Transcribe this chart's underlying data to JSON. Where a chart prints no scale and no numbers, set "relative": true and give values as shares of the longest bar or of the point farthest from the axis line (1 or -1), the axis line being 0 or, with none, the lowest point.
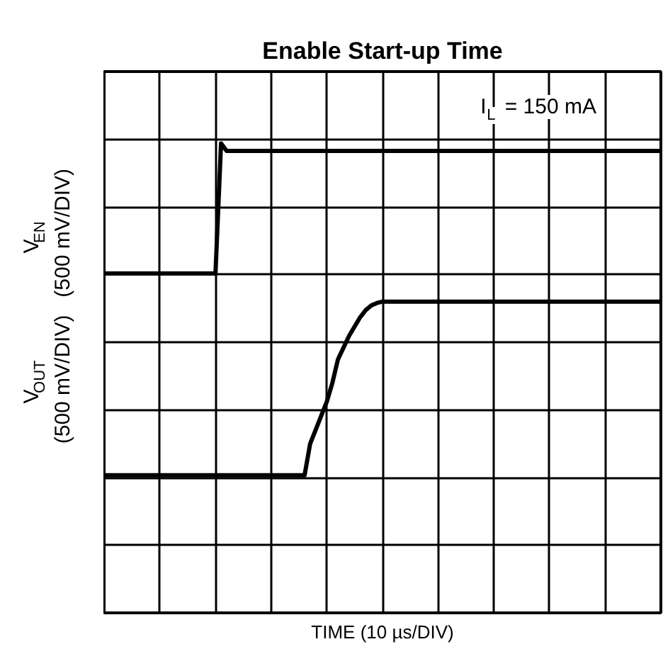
{
  "chart_data": {
    "type": "line",
    "title": "Enable Start-up Time",
    "xlabel": "TIME (10 µs/DIV)",
    "relative": true,
    "grid": true,
    "marker": "none",
    "line_style": "solid",
    "annotations": [
      "I$_{L}$ = 150 mA"
    ],
    "categories": [
      null,
      null,
      null,
      null,
      null,
      null,
      null,
      null,
      null,
      null,
      null,
      null,
      null,
      null,
      null,
      null,
      null,
      null,
      null,
      null,
      null,
      null,
      null,
      null,
      null,
      null,
      null,
      null,
      null,
      null,
      null,
      null,
      null,
      null,
      null,
      null,
      null,
      null,
      null,
      null,
      null,
      null,
      null,
      null,
      null,
      null,
      null,
      null,
      null,
      null,
      null,
      null,
      null,
      null,
      null,
      null,
      null,
      null,
      null,
      null,
      null,
      null,
      null,
      null,
      null,
      null,
      null,
      null,
      null,
      null,
      null,
      null,
      null,
      null,
      null,
      null,
      null,
      null,
      null,
      null,
      null,
      null,
      null,
      null,
      null,
      null,
      null,
      null,
      null,
      null,
      null,
      null,
      null,
      null,
      null,
      null,
      null,
      null,
      null,
      null,
      null
    ],
    "series": [
      {
        "name": "V$_{EN}$\n(500 mV/DIV)",
        "color": "#000000",
        "values": [
          0.723,
          0.723,
          0.723,
          0.723,
          0.723,
          0.723,
          0.723,
          0.723,
          0.723,
          0.723,
          0.723,
          0.723,
          0.723,
          0.723,
          0.723,
          0.723,
          0.723,
          0.723,
          0.723,
          0.723,
          0.723,
          1.0,
          0.984,
          0.984,
          0.984,
          0.984,
          0.984,
          0.984,
          0.984,
          0.984,
          0.984,
          0.984,
          0.984,
          0.984,
          0.984,
          0.984,
          0.984,
          0.984,
          0.984,
          0.984,
          0.984,
          0.984,
          0.984,
          0.984,
          0.984,
          0.984,
          0.984,
          0.984,
          0.984,
          0.984,
          0.984,
          0.984,
          0.984,
          0.984,
          0.984,
          0.984,
          0.984,
          0.984,
          0.984,
          0.984,
          0.984,
          0.984,
          0.984,
          0.984,
          0.984,
          0.984,
          0.984,
          0.984,
          0.984,
          0.984,
          0.984,
          0.984,
          0.984,
          0.984,
          0.984,
          0.984,
          0.984,
          0.984,
          0.984,
          0.984,
          0.984,
          0.984,
          0.984,
          0.984,
          0.984,
          0.984,
          0.984,
          0.984,
          0.984,
          0.984,
          0.984,
          0.984,
          0.984,
          0.984,
          0.984,
          0.984,
          0.984,
          0.984,
          0.984,
          0.984,
          0.984
        ]
      },
      {
        "name": "V$_{OUT}$\n(500 mV/DIV)",
        "color": "#000000",
        "values": [
          0.293,
          0.293,
          0.293,
          0.293,
          0.293,
          0.293,
          0.293,
          0.293,
          0.293,
          0.293,
          0.293,
          0.293,
          0.293,
          0.293,
          0.293,
          0.293,
          0.293,
          0.293,
          0.293,
          0.293,
          0.293,
          0.293,
          0.293,
          0.293,
          0.293,
          0.293,
          0.293,
          0.293,
          0.293,
          0.293,
          0.293,
          0.293,
          0.293,
          0.293,
          0.293,
          0.293,
          0.293,
          0.36,
          0.39,
          0.42,
          0.45,
          0.49,
          0.54,
          0.565,
          0.59,
          0.61,
          0.63,
          0.645,
          0.655,
          0.66,
          0.663,
          0.663,
          0.663,
          0.663,
          0.663,
          0.663,
          0.663,
          0.663,
          0.663,
          0.663,
          0.663,
          0.663,
          0.663,
          0.663,
          0.663,
          0.663,
          0.663,
          0.663,
          0.663,
          0.663,
          0.663,
          0.663,
          0.663,
          0.663,
          0.663,
          0.663,
          0.663,
          0.663,
          0.663,
          0.663,
          0.663,
          0.663,
          0.663,
          0.663,
          0.663,
          0.663,
          0.663,
          0.663,
          0.663,
          0.663,
          0.663,
          0.663,
          0.663,
          0.663,
          0.663,
          0.663,
          0.663,
          0.663,
          0.663,
          0.663,
          0.663
        ]
      }
    ]
  }
}
